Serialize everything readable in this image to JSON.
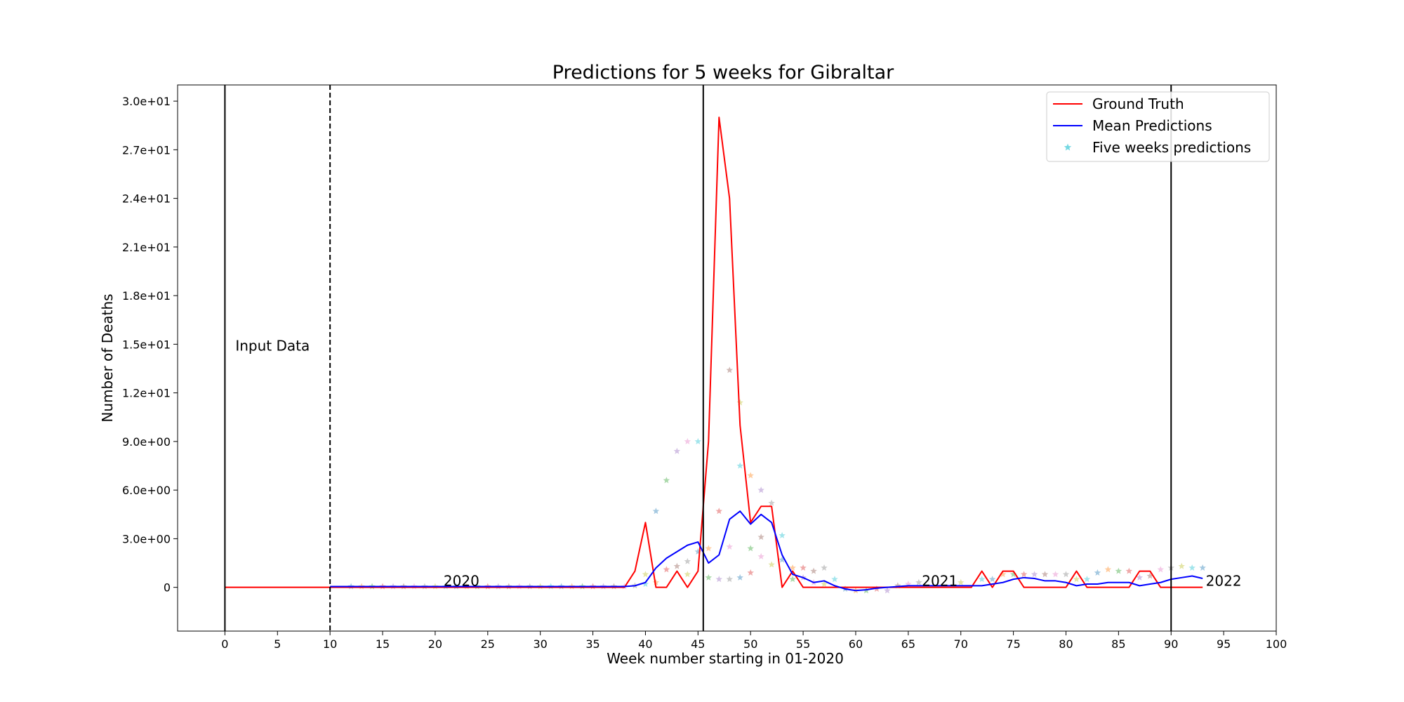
{
  "chart_data": {
    "type": "line",
    "title": "Predictions for 5 weeks for Gibraltar",
    "xlabel": "Week number starting in 01-2020",
    "ylabel": "Number of Deaths",
    "xlim": [
      -4.5,
      100
    ],
    "ylim": [
      -2.7,
      31
    ],
    "x_ticks": [
      0,
      5,
      10,
      15,
      20,
      25,
      30,
      35,
      40,
      45,
      50,
      55,
      60,
      65,
      70,
      75,
      80,
      85,
      90,
      95,
      100
    ],
    "y_ticks": [
      {
        "value": 0,
        "label": "0"
      },
      {
        "value": 3,
        "label": "3.0e+00"
      },
      {
        "value": 6,
        "label": "6.0e+00"
      },
      {
        "value": 9,
        "label": "9.0e+00"
      },
      {
        "value": 12,
        "label": "1.2e+01"
      },
      {
        "value": 15,
        "label": "1.5e+01"
      },
      {
        "value": 18,
        "label": "1.8e+01"
      },
      {
        "value": 21,
        "label": "2.1e+01"
      },
      {
        "value": 24,
        "label": "2.4e+01"
      },
      {
        "value": 27,
        "label": "2.7e+01"
      },
      {
        "value": 30,
        "label": "3.0e+01"
      }
    ],
    "grid": false,
    "legend_position": "top-right",
    "vertical_lines": [
      {
        "x": 0,
        "style": "solid"
      },
      {
        "x": 10,
        "style": "dashed"
      },
      {
        "x": 45.5,
        "style": "solid"
      },
      {
        "x": 90,
        "style": "solid"
      }
    ],
    "annotations": [
      {
        "text": "Input Data",
        "x": 1,
        "y": 14.6
      },
      {
        "text": "2020",
        "x": 20.8,
        "y": 0.1
      },
      {
        "text": "2021",
        "x": 66.3,
        "y": 0.1
      },
      {
        "text": "2022",
        "x": 93.3,
        "y": 0.1
      }
    ],
    "series": [
      {
        "name": "Ground Truth",
        "color": "#ff0000",
        "x": [
          0,
          1,
          2,
          3,
          4,
          5,
          6,
          7,
          8,
          9,
          10,
          11,
          12,
          13,
          14,
          15,
          16,
          17,
          18,
          19,
          20,
          21,
          22,
          23,
          24,
          25,
          26,
          27,
          28,
          29,
          30,
          31,
          32,
          33,
          34,
          35,
          36,
          37,
          38,
          39,
          40,
          41,
          42,
          43,
          44,
          45,
          46,
          47,
          48,
          49,
          50,
          51,
          52,
          53,
          54,
          55,
          56,
          57,
          58,
          59,
          60,
          61,
          62,
          63,
          64,
          65,
          66,
          67,
          68,
          69,
          70,
          71,
          72,
          73,
          74,
          75,
          76,
          77,
          78,
          79,
          80,
          81,
          82,
          83,
          84,
          85,
          86,
          87,
          88,
          89,
          90,
          91,
          92,
          93
        ],
        "values": [
          0,
          0,
          0,
          0,
          0,
          0,
          0,
          0,
          0,
          0,
          0,
          0,
          0,
          0,
          0,
          0,
          0,
          0,
          0,
          0,
          0,
          0,
          0,
          0,
          0,
          0,
          0,
          0,
          0,
          0,
          0,
          0,
          0,
          0,
          0,
          0,
          0,
          0,
          0,
          1,
          4,
          0,
          0,
          1,
          0,
          1,
          9,
          29,
          24,
          10,
          4,
          5,
          5,
          0,
          1,
          0,
          0,
          0,
          0,
          0,
          0,
          0,
          0,
          0,
          0,
          0,
          0,
          0,
          0,
          0,
          0,
          0,
          1,
          0,
          1,
          1,
          0,
          0,
          0,
          0,
          0,
          1,
          0,
          0,
          0,
          0,
          0,
          1,
          1,
          0,
          0,
          0,
          0,
          0
        ]
      },
      {
        "name": "Mean Predictions",
        "color": "#0000ff",
        "x": [
          10,
          11,
          12,
          13,
          14,
          15,
          16,
          17,
          18,
          19,
          20,
          21,
          22,
          23,
          24,
          25,
          26,
          27,
          28,
          29,
          30,
          31,
          32,
          33,
          34,
          35,
          36,
          37,
          38,
          39,
          40,
          41,
          42,
          43,
          44,
          45,
          46,
          47,
          48,
          49,
          50,
          51,
          52,
          53,
          54,
          55,
          56,
          57,
          58,
          59,
          60,
          61,
          62,
          63,
          64,
          65,
          66,
          67,
          68,
          69,
          70,
          71,
          72,
          73,
          74,
          75,
          76,
          77,
          78,
          79,
          80,
          81,
          82,
          83,
          84,
          85,
          86,
          87,
          88,
          89,
          90,
          91,
          92,
          93
        ],
        "values": [
          0.05,
          0.05,
          0.05,
          0.05,
          0.05,
          0.05,
          0.05,
          0.05,
          0.05,
          0.05,
          0.05,
          0.05,
          0.05,
          0.05,
          0.05,
          0.05,
          0.05,
          0.05,
          0.05,
          0.05,
          0.05,
          0.05,
          0.05,
          0.05,
          0.05,
          0.05,
          0.05,
          0.05,
          0.05,
          0.1,
          0.3,
          1.2,
          1.8,
          2.2,
          2.6,
          2.8,
          1.5,
          2.0,
          4.2,
          4.7,
          3.9,
          4.5,
          4.0,
          2.0,
          0.8,
          0.6,
          0.3,
          0.4,
          0.1,
          -0.1,
          -0.2,
          -0.15,
          -0.05,
          0.0,
          0.05,
          0.1,
          0.1,
          0.1,
          0.1,
          0.1,
          0.1,
          0.1,
          0.1,
          0.2,
          0.3,
          0.5,
          0.6,
          0.55,
          0.4,
          0.4,
          0.3,
          0.1,
          0.2,
          0.2,
          0.3,
          0.3,
          0.3,
          0.1,
          0.2,
          0.3,
          0.5,
          0.6,
          0.7,
          0.55
        ]
      },
      {
        "name": "Five weeks predictions",
        "color": "#17becf",
        "marker": "star",
        "palette": [
          "#1f77b4",
          "#ff7f0e",
          "#2ca02c",
          "#d62728",
          "#9467bd",
          "#8c564b",
          "#e377c2",
          "#7f7f7f",
          "#bcbd22",
          "#17becf"
        ],
        "x": [
          12,
          13,
          14,
          15,
          16,
          17,
          18,
          19,
          20,
          21,
          22,
          23,
          24,
          25,
          26,
          27,
          28,
          29,
          30,
          31,
          32,
          33,
          34,
          35,
          36,
          37,
          38,
          39,
          40,
          40,
          41,
          41,
          42,
          42,
          43,
          43,
          44,
          44,
          44,
          45,
          45,
          46,
          46,
          47,
          47,
          48,
          48,
          48,
          49,
          49,
          49,
          50,
          50,
          50,
          51,
          51,
          51,
          52,
          52,
          53,
          53,
          54,
          54,
          55,
          55,
          56,
          56,
          57,
          57,
          58,
          59,
          60,
          61,
          62,
          63,
          64,
          65,
          66,
          70,
          72,
          73,
          74,
          75,
          76,
          77,
          78,
          79,
          80,
          81,
          82,
          83,
          84,
          85,
          86,
          87,
          88,
          89,
          90,
          91,
          92,
          93
        ],
        "values": [
          0.05,
          0.05,
          0.05,
          0.05,
          0.05,
          0.05,
          0.05,
          0.05,
          0.05,
          0.05,
          0.05,
          0.05,
          0.05,
          0.05,
          0.05,
          0.05,
          0.05,
          0.05,
          0.05,
          0.05,
          0.05,
          0.05,
          0.05,
          0.05,
          0.05,
          0.05,
          0.05,
          0.1,
          0.8,
          0.2,
          4.7,
          0.3,
          6.6,
          1.1,
          8.4,
          1.3,
          9.0,
          1.6,
          0.8,
          9.0,
          2.2,
          2.4,
          0.6,
          4.7,
          0.5,
          13.4,
          2.5,
          0.5,
          11.4,
          7.5,
          0.6,
          6.9,
          2.4,
          0.9,
          6.0,
          3.1,
          1.9,
          5.2,
          1.4,
          3.2,
          1.7,
          1.2,
          0.5,
          1.2,
          0.6,
          1.0,
          0.3,
          1.2,
          0.2,
          0.5,
          -0.1,
          -0.2,
          -0.2,
          -0.1,
          -0.2,
          0.1,
          0.2,
          0.3,
          0.3,
          0.5,
          0.5,
          0.8,
          0.8,
          0.8,
          0.8,
          0.8,
          0.8,
          0.8,
          0.5,
          0.5,
          0.9,
          1.1,
          1.0,
          1.0,
          0.6,
          0.7,
          1.1,
          1.2,
          1.3,
          1.2,
          1.2
        ]
      }
    ]
  }
}
